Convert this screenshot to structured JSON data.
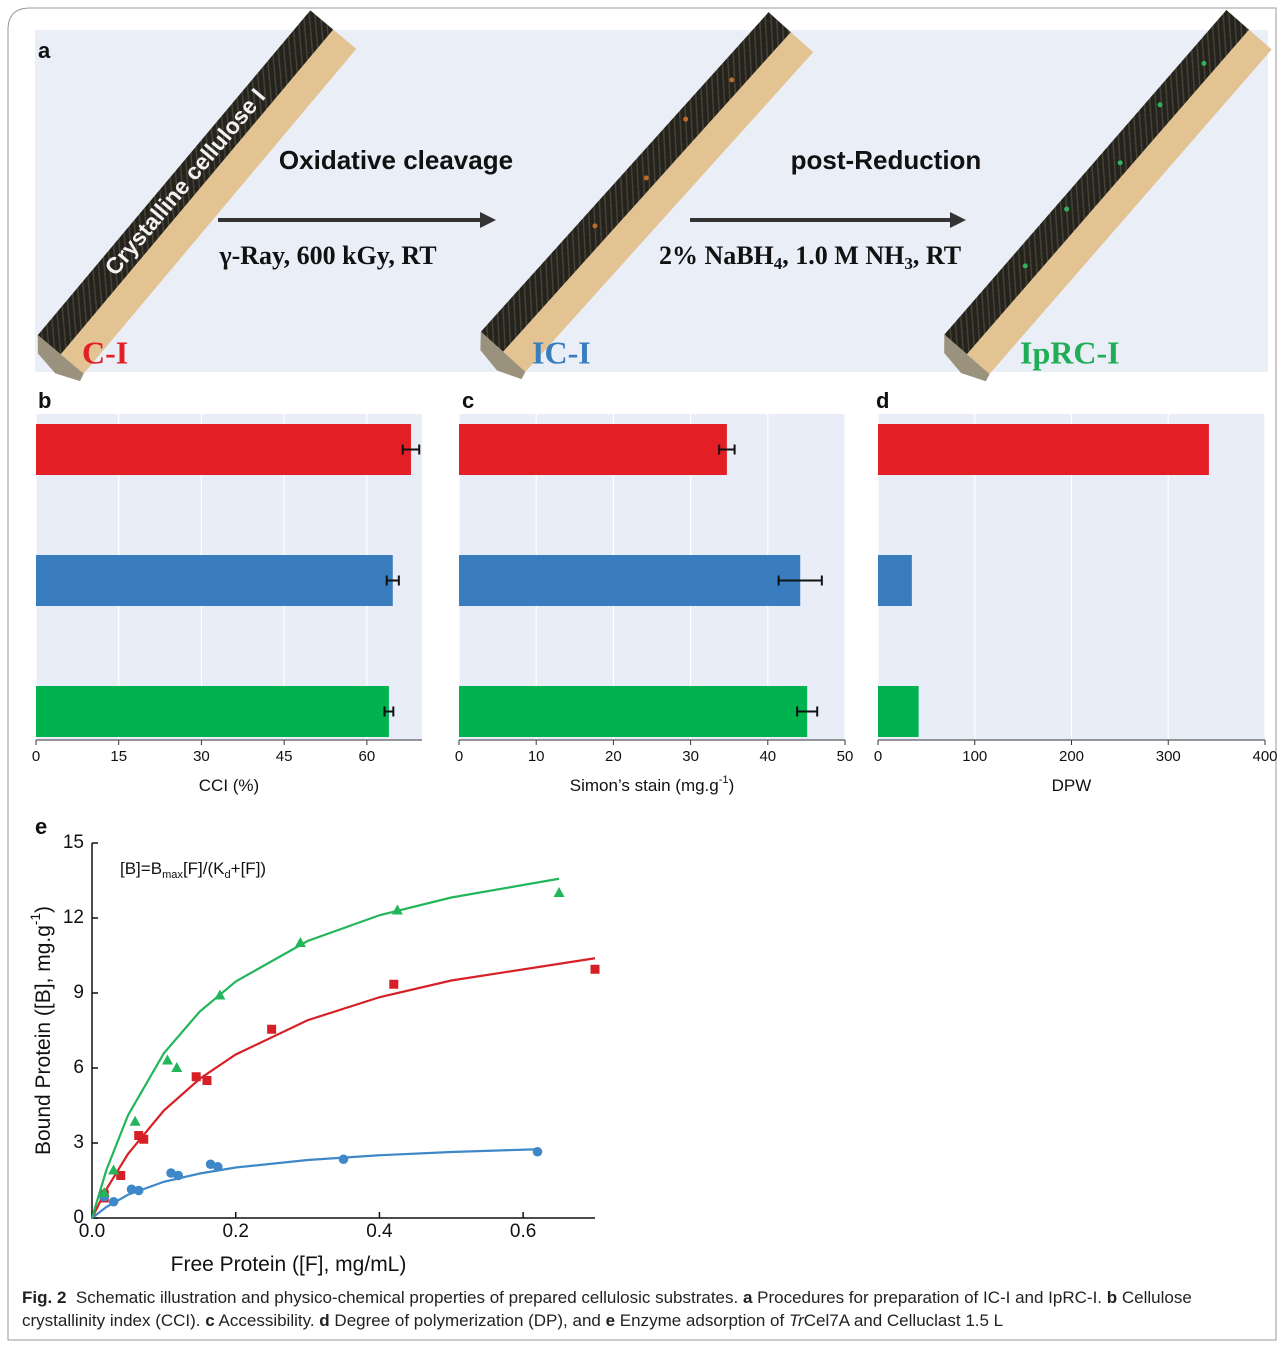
{
  "panel_a": {
    "label": "a",
    "rod_text": "Crystalline cellulose I",
    "step1": {
      "title": "Oxidative cleavage",
      "condition": "γ-Ray, 600 kGy, RT"
    },
    "step2": {
      "title": "post-Reduction",
      "condition": [
        "2% NaBH",
        "4",
        ", 1.0 M NH",
        "3",
        ", RT"
      ]
    },
    "products": [
      "C-I",
      "IC-I",
      "IpRC-I"
    ]
  },
  "chart_data": [
    {
      "type": "bar",
      "panel": "b",
      "orientation": "horizontal",
      "categories": [
        null,
        null,
        null
      ],
      "values": [
        68.0,
        64.7,
        64.0
      ],
      "errors": [
        1.5,
        1.1,
        0.8
      ],
      "colors": [
        "#e31e24",
        "#3a7dbf",
        "#00b34f"
      ],
      "xlim": [
        0,
        70
      ],
      "xticks": [
        0,
        15,
        30,
        45,
        60
      ],
      "xlabel": [
        "CCI (%)"
      ],
      "grid": true
    },
    {
      "type": "bar",
      "panel": "c",
      "orientation": "horizontal",
      "categories": [
        null,
        null,
        null
      ],
      "values": [
        34.7,
        44.2,
        45.1
      ],
      "errors": [
        1.0,
        2.8,
        1.3
      ],
      "colors": [
        "#e31e24",
        "#3a7dbf",
        "#00b34f"
      ],
      "xlim": [
        0,
        50
      ],
      "xticks": [
        0,
        10,
        20,
        30,
        40,
        50
      ],
      "xlabel": [
        "Simon’s stain (mg.g",
        "-1",
        ")"
      ],
      "grid": true
    },
    {
      "type": "bar",
      "panel": "d",
      "orientation": "horizontal",
      "categories": [
        null,
        null,
        null
      ],
      "values": [
        342,
        35,
        42
      ],
      "colors": [
        "#e31e24",
        "#3a7dbf",
        "#00b34f"
      ],
      "xlim": [
        0,
        400
      ],
      "xticks": [
        0,
        100,
        200,
        300,
        400
      ],
      "xlabel": [
        "DPW"
      ],
      "grid": true
    },
    {
      "type": "scatter",
      "panel": "e",
      "annotation": [
        "[B]=B",
        "max",
        "[F]/(K",
        "d",
        "+[F])"
      ],
      "xlabel": [
        "Free Protein ([F], mg/mL)"
      ],
      "ylabel": [
        "Bound Protein ([B], mg.g",
        "-1",
        ")"
      ],
      "xlim": [
        0,
        0.7
      ],
      "xticks": [
        {
          "value": 0,
          "label": "0.0"
        },
        0.2,
        0.4,
        0.6
      ],
      "ylim": [
        0,
        15
      ],
      "yticks": [
        0,
        3,
        6,
        9,
        12,
        15
      ],
      "series": [
        {
          "color": "#d62027",
          "marker": "square",
          "x": [
            0.017,
            0.017,
            0.04,
            0.065,
            0.072,
            0.145,
            0.16,
            0.25,
            0.42,
            0.7
          ],
          "values": [
            0.95,
            0.8,
            1.7,
            3.3,
            3.15,
            5.65,
            5.5,
            7.55,
            9.35,
            9.95
          ],
          "fit": {
            "x": [
              0,
              0.02,
              0.05,
              0.1,
              0.15,
              0.2,
              0.3,
              0.4,
              0.5,
              0.7
            ],
            "y": [
              0,
              1.15,
              2.56,
              4.3,
              5.57,
              6.54,
              7.91,
              8.83,
              9.5,
              10.39
            ]
          }
        },
        {
          "color": "#3e87c8",
          "marker": "circle",
          "x": [
            0.017,
            0.03,
            0.055,
            0.065,
            0.11,
            0.12,
            0.165,
            0.175,
            0.35,
            0.62
          ],
          "values": [
            0.85,
            0.65,
            1.15,
            1.1,
            1.8,
            1.7,
            2.15,
            2.05,
            2.35,
            2.65
          ],
          "fit": {
            "x": [
              0,
              0.02,
              0.05,
              0.1,
              0.15,
              0.2,
              0.3,
              0.4,
              0.5,
              0.62
            ],
            "y": [
              0,
              0.44,
              0.93,
              1.45,
              1.78,
              2.02,
              2.32,
              2.51,
              2.64,
              2.75
            ]
          }
        },
        {
          "color": "#23b55a",
          "marker": "triangle",
          "x": [
            0.017,
            0.03,
            0.06,
            0.105,
            0.118,
            0.178,
            0.29,
            0.425,
            0.65
          ],
          "values": [
            1.0,
            1.9,
            3.85,
            6.3,
            6.0,
            8.9,
            11.0,
            12.3,
            13.0
          ],
          "fit": {
            "x": [
              0,
              0.02,
              0.05,
              0.1,
              0.15,
              0.2,
              0.3,
              0.4,
              0.5,
              0.65
            ],
            "y": [
              0,
              1.92,
              4.1,
              6.59,
              8.26,
              9.46,
              11.08,
              12.11,
              12.82,
              13.57
            ]
          }
        }
      ]
    }
  ],
  "caption": [
    "Fig. 2",
    "Schematic illustration and physico-chemical properties of prepared cellulosic substrates. ",
    "a",
    " Procedures for preparation of IC-I and IpRC-I. ",
    "b",
    " Cellulose crystallinity index (CCI). ",
    "c",
    " Accessibility. ",
    "d",
    " Degree of polymerization (DP), and ",
    "e",
    " Enzyme adsorption of ",
    "Tr",
    "Cel7A and Celluclast 1.5 L"
  ]
}
